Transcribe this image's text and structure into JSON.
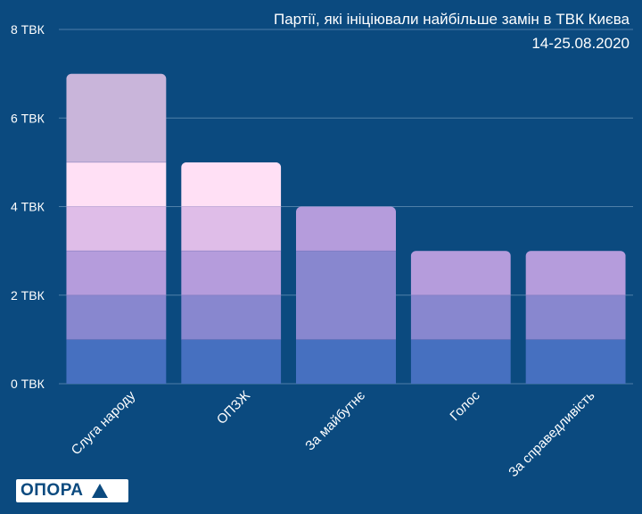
{
  "title_line1": "Партії, які ініціювали найбільше замін в ТВК Києва",
  "title_line2": "14-25.08.2020",
  "logo": {
    "text": "ОПОРА",
    "icon": "triangle-logo-icon"
  },
  "colors": {
    "background": "#0b4a7f",
    "gridline": "#4f7fa8",
    "segments": [
      "#4670c0",
      "#8887cf",
      "#b59cdc",
      "#dfbde8",
      "#ffe0f5",
      "#c9b5da"
    ]
  },
  "chart_data": {
    "type": "bar",
    "stacked": true,
    "title": "Партії, які ініціювали найбільше замін в ТВК Києва",
    "subtitle": "14-25.08.2020",
    "categories": [
      "Слуга народу",
      "ОПЗЖ",
      "За майбутнє",
      "Голос",
      "За справедливість"
    ],
    "stacks": [
      [
        1,
        1,
        1,
        1,
        1,
        2
      ],
      [
        1,
        1,
        1,
        1,
        1
      ],
      [
        1,
        2,
        1
      ],
      [
        1,
        1,
        1
      ],
      [
        1,
        1,
        1
      ]
    ],
    "stack_colors": [
      [
        0,
        1,
        2,
        3,
        4,
        5
      ],
      [
        0,
        1,
        2,
        3,
        4
      ],
      [
        0,
        1,
        2
      ],
      [
        0,
        1,
        2
      ],
      [
        0,
        1,
        2
      ]
    ],
    "totals": [
      7,
      5,
      4,
      3,
      3
    ],
    "ylim": [
      0,
      8
    ],
    "yticks": [
      0,
      2,
      4,
      6,
      8
    ],
    "ytick_labels": [
      "0 ТВК",
      "2 ТВК",
      "4 ТВК",
      "6 ТВК",
      "8 ТВК"
    ],
    "xlabel": "",
    "ylabel": "",
    "grid": true
  }
}
